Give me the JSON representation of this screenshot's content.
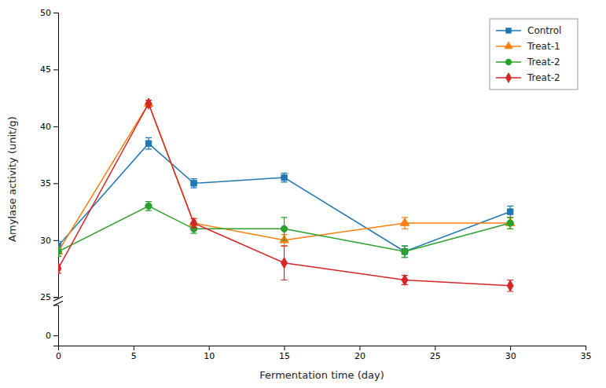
{
  "chart_data": [
    {
      "type": "line",
      "ylabel": "Amylase activity (unit/g)",
      "x": [
        0,
        6,
        9,
        15,
        23,
        30
      ],
      "series": [
        {
          "name": "Control",
          "marker": "square",
          "values": [
            29.5,
            38.5,
            35.0,
            35.5,
            29.0,
            32.5
          ],
          "yerr": [
            0.4,
            0.5,
            0.4,
            0.4,
            0.5,
            0.5
          ]
        },
        {
          "name": "Treat-1",
          "marker": "triangle",
          "values": [
            29.0,
            42.0,
            31.5,
            30.0,
            31.5,
            31.5
          ],
          "yerr": [
            0.4,
            0.3,
            0.4,
            0.5,
            0.5,
            0.5
          ]
        },
        {
          "name": "Treat-2",
          "marker": "circle",
          "values": [
            29.0,
            33.0,
            31.0,
            31.0,
            29.0,
            31.5
          ],
          "yerr": [
            0.4,
            0.4,
            0.4,
            1.0,
            0.5,
            0.5
          ]
        },
        {
          "name": "Treat-2",
          "marker": "diamond",
          "values": [
            27.5,
            42.0,
            31.5,
            28.0,
            26.5,
            26.0
          ],
          "yerr": [
            0.4,
            0.3,
            0.4,
            1.5,
            0.4,
            0.5
          ]
        }
      ],
      "xlim": [
        0,
        35
      ],
      "ylim": [
        25,
        50
      ],
      "yticks": [
        25,
        30,
        35,
        40,
        45,
        50
      ],
      "tick_labels": "y",
      "legend": "upper right"
    },
    {
      "type": "line",
      "xlabel": "Fermentation time (day)",
      "xlim": [
        0,
        35
      ],
      "xticks": [
        0,
        5,
        10,
        15,
        20,
        25,
        30,
        35
      ],
      "ylim": [
        -0.5,
        1.5
      ],
      "yticks": [
        0
      ],
      "series": []
    }
  ]
}
